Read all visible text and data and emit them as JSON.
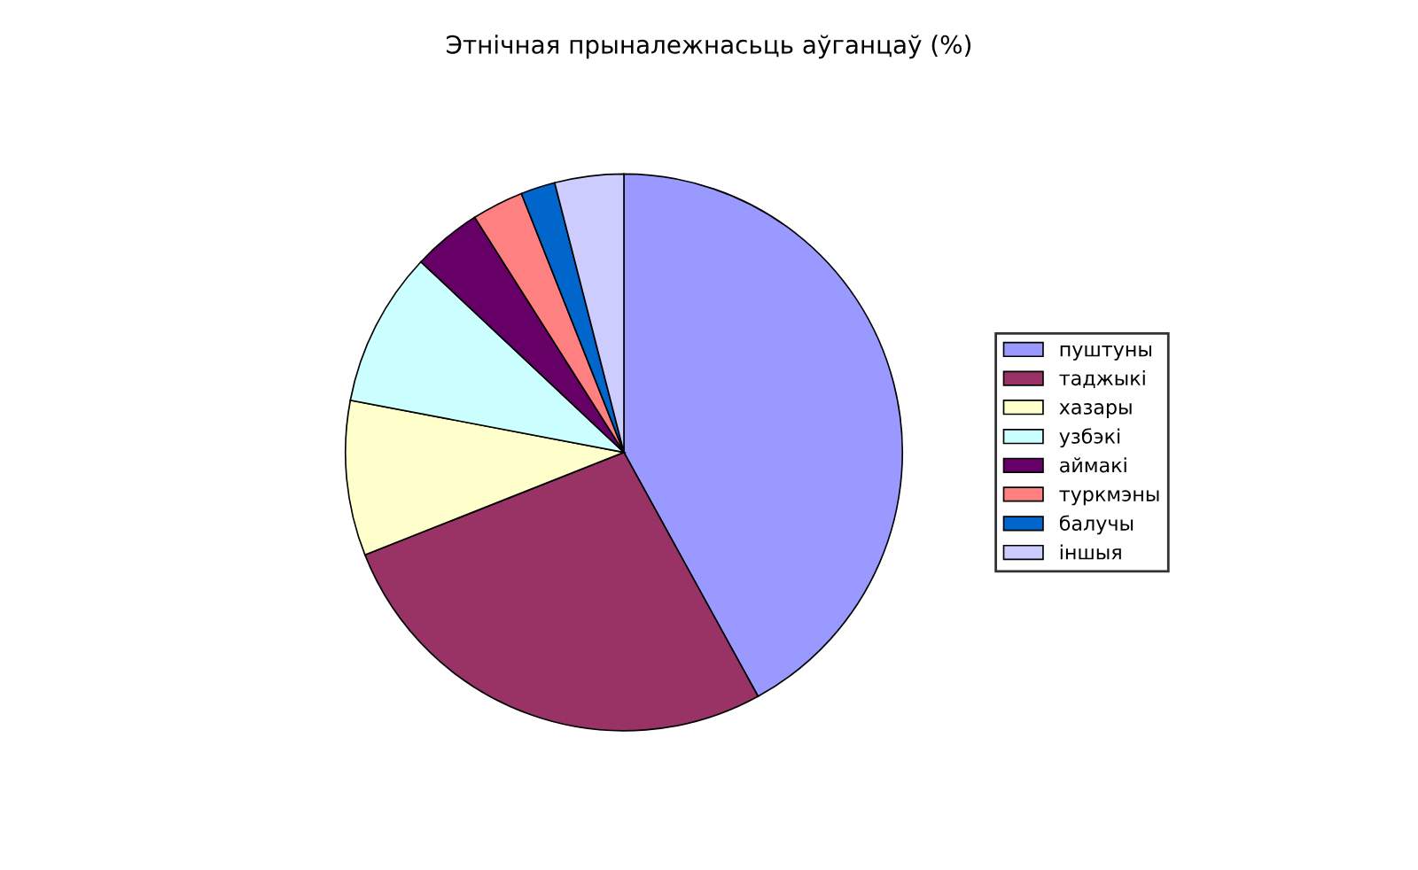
{
  "chart_data": {
    "type": "pie",
    "title": "Этнічная прыналежнасьць аўганцаў (%)",
    "categories": [
      "пуштуны",
      "таджыкі",
      "хазары",
      "узбэкі",
      "аймакі",
      "туркмэны",
      "балучы",
      "іншыя"
    ],
    "values": [
      42,
      27,
      9,
      9,
      4,
      3,
      2,
      4
    ],
    "colors": [
      "#9999ff",
      "#993366",
      "#ffffcc",
      "#ccffff",
      "#660066",
      "#ff8080",
      "#0066cc",
      "#ccccff"
    ],
    "legend": "right"
  }
}
